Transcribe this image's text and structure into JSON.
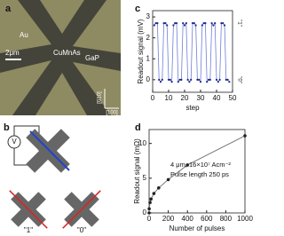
{
  "panel_labels": [
    "a",
    "b",
    "c",
    "d"
  ],
  "micrograph": {
    "labels": [
      "Au",
      "CuMnAs",
      "GaP"
    ],
    "scale_bar": "2μm",
    "axes": [
      "[010]",
      "[100]"
    ]
  },
  "diagram": {
    "meter": "V",
    "states": [
      "\"1\"",
      "\"0\""
    ]
  },
  "chart_data": [
    {
      "type": "line",
      "xlabel": "step",
      "ylabel": "Readout signal (mV)",
      "x": [
        1,
        2,
        3,
        4,
        5,
        6,
        7,
        8,
        9,
        10,
        11,
        12,
        13,
        14,
        15,
        16,
        17,
        18,
        19,
        20,
        21,
        22,
        23,
        24,
        25,
        26,
        27,
        28,
        29,
        30,
        31,
        32,
        33,
        34,
        35,
        36,
        37,
        38,
        39,
        40,
        41,
        42,
        43,
        44,
        45,
        46,
        47,
        48
      ],
      "series": [
        {
          "color": "#6f7fd8",
          "marker_color": "#1c2a8c",
          "values": [
            2.6,
            2.7,
            2.7,
            0.0,
            -0.1,
            0.0,
            2.7,
            2.7,
            2.6,
            0.0,
            0.0,
            -0.1,
            2.6,
            2.7,
            2.7,
            -0.1,
            0.0,
            0.0,
            2.7,
            2.6,
            2.7,
            0.0,
            -0.1,
            0.0,
            2.7,
            2.7,
            2.6,
            0.0,
            0.0,
            -0.1,
            2.6,
            2.7,
            2.7,
            -0.1,
            0.0,
            0.0,
            2.7,
            2.6,
            2.7,
            0.0,
            -0.1,
            0.0,
            2.7,
            2.7,
            2.6,
            0.0,
            0.0,
            -0.1
          ]
        }
      ],
      "state_labels": [
        "\"1\"",
        "\"0\""
      ],
      "xlim": [
        0,
        50
      ],
      "xticks": [
        0,
        10,
        20,
        30,
        40,
        50
      ],
      "ylim": [
        -0.6,
        3.3
      ],
      "yticks": [
        0,
        1,
        2,
        3
      ]
    },
    {
      "type": "scatter",
      "xlabel": "Number of pulses",
      "ylabel": "Readout signal (mΩ)",
      "annotations": [
        "4 μm, 16×10⁷ Acm⁻²",
        "Pulse length 250 ps"
      ],
      "x": [
        0,
        1,
        10,
        20,
        50,
        100,
        200,
        400,
        1000
      ],
      "series": [
        {
          "color": "#222222",
          "line_color": "#777777",
          "values": [
            0,
            0.6,
            1.5,
            2.0,
            2.8,
            3.6,
            4.8,
            6.9,
            11.1
          ]
        }
      ],
      "xlim": [
        0,
        1000
      ],
      "xticks": [
        0,
        200,
        400,
        600,
        800,
        1000
      ],
      "ylim": [
        0,
        12
      ],
      "yticks": [
        0,
        5,
        10
      ]
    }
  ]
}
